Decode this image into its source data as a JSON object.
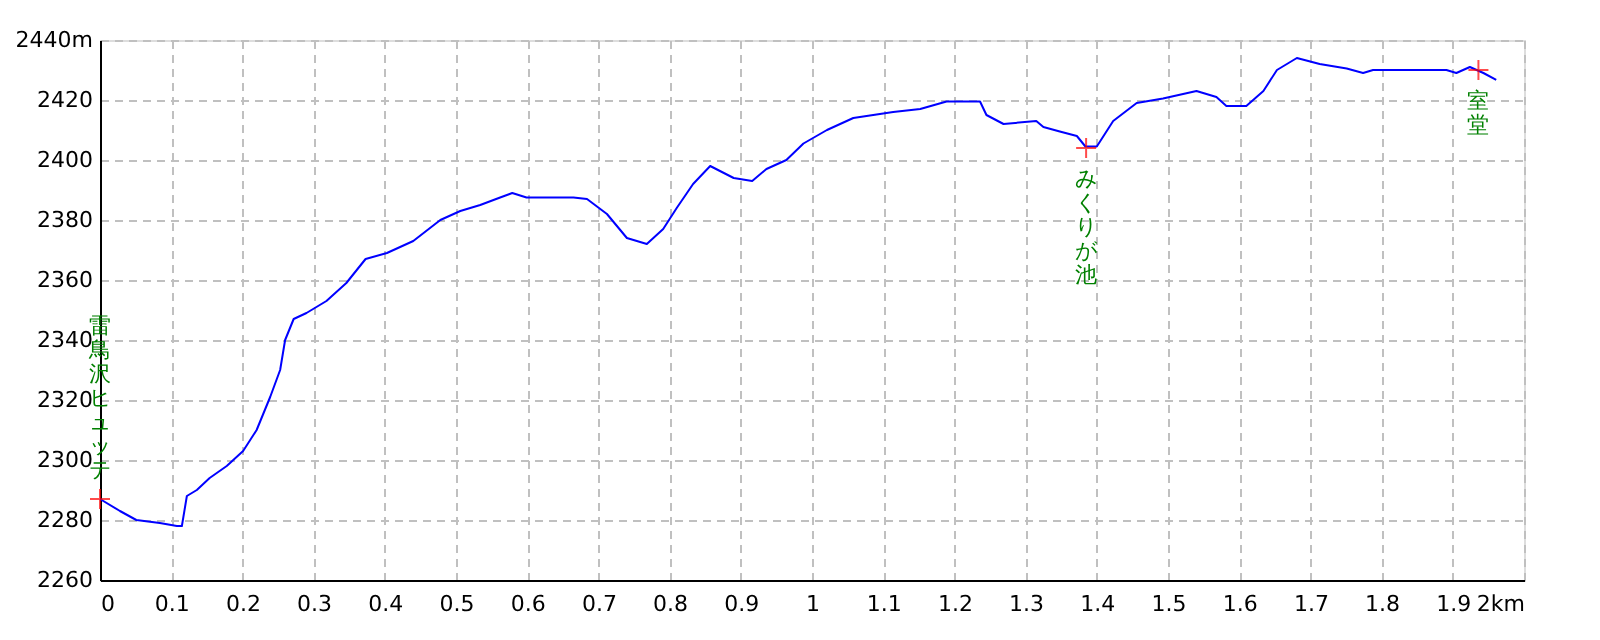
{
  "chart_data": {
    "type": "line",
    "series": [
      {
        "color": "#0000ff",
        "x": [
          0,
          0.028,
          0.051,
          0.084,
          0.108,
          0.115,
          0.122,
          0.136,
          0.154,
          0.178,
          0.201,
          0.22,
          0.239,
          0.253,
          0.26,
          0.272,
          0.29,
          0.318,
          0.346,
          0.373,
          0.403,
          0.44,
          0.478,
          0.506,
          0.534,
          0.562,
          0.579,
          0.599,
          0.665,
          0.684,
          0.712,
          0.74,
          0.768,
          0.791,
          0.81,
          0.833,
          0.857,
          0.89,
          0.916,
          0.936,
          0.964,
          0.988,
          1.021,
          1.058,
          1.114,
          1.152,
          1.189,
          1.236,
          1.245,
          1.269,
          1.315,
          1.325,
          1.348,
          1.372,
          1.384,
          1.4,
          1.423,
          1.456,
          1.493,
          1.54,
          1.568,
          1.582,
          1.61,
          1.634,
          1.653,
          1.681,
          1.713,
          1.751,
          1.774,
          1.788,
          1.891,
          1.905,
          1.924,
          1.943,
          1.961
        ],
        "values": [
          2287,
          2283,
          2280,
          2279,
          2278,
          2278,
          2288,
          2290,
          2294,
          2298,
          2303,
          2310,
          2321,
          2330,
          2340,
          2347,
          2349,
          2353,
          2359,
          2367,
          2369,
          2373,
          2380,
          2383,
          2385,
          2387.5,
          2389,
          2387.5,
          2387.5,
          2387,
          2382,
          2374,
          2372,
          2377,
          2384,
          2392,
          2398,
          2394,
          2393,
          2397,
          2400,
          2405.5,
          2410,
          2414,
          2416,
          2417,
          2419.5,
          2419.5,
          2415,
          2412,
          2413,
          2411,
          2409.5,
          2408,
          2404.5,
          2404.5,
          2413,
          2419,
          2420.5,
          2423,
          2421,
          2418,
          2418,
          2423,
          2430,
          2434,
          2432,
          2430.5,
          2429,
          2430,
          2430,
          2429,
          2431,
          2429,
          2426.7
        ]
      }
    ],
    "xlim": [
      0,
      2
    ],
    "xticks": [
      0,
      0.1,
      0.2,
      0.3,
      0.4,
      0.5,
      0.6,
      0.7,
      0.8,
      0.9,
      1,
      1.1,
      1.2,
      1.3,
      1.4,
      1.5,
      1.6,
      1.7,
      1.8,
      1.9,
      {
        "value": 2,
        "label": "2km"
      }
    ],
    "ylim": [
      2260,
      2440
    ],
    "yticks": [
      2260,
      2280,
      2300,
      2320,
      2340,
      2360,
      2380,
      2400,
      2420,
      {
        "value": 2440,
        "label": "2440m"
      }
    ],
    "grid": true,
    "line_style": "solid",
    "marker": "none",
    "annotations": [
      {
        "text": "雷鳥沢ヒュッテ",
        "x": 0,
        "y": 2287
      },
      {
        "text": "みくりが池",
        "x": 1.385,
        "y": 2404
      },
      {
        "text": "室堂",
        "x": 1.936,
        "y": 2430
      }
    ]
  }
}
